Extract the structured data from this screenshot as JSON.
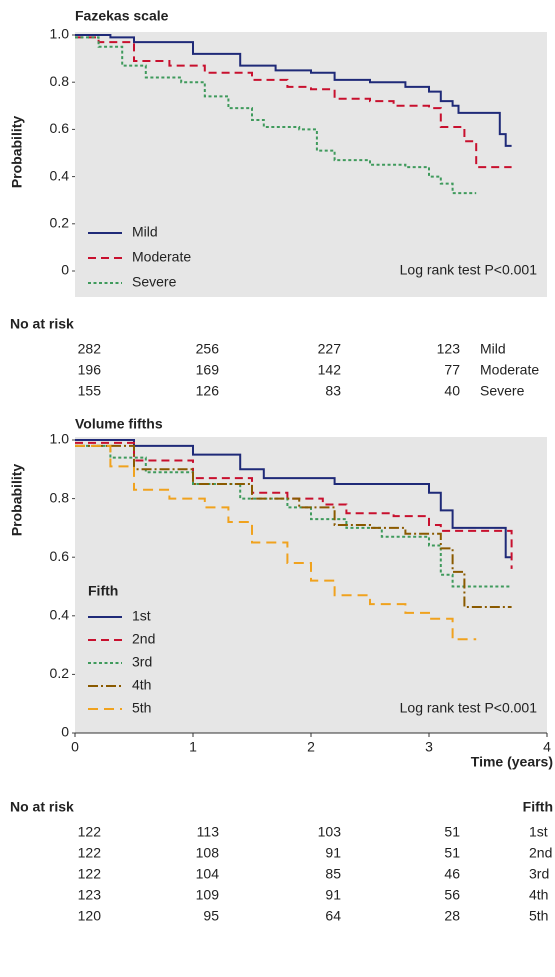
{
  "chart_data": [
    {
      "type": "line",
      "step": true,
      "title": "Fazekas scale",
      "y_label": "Probability",
      "xlim": [
        0,
        4
      ],
      "ylim": [
        0,
        1
      ],
      "yticks": [
        {
          "value": 1,
          "label": "1.0"
        },
        {
          "value": 0.8,
          "label": "0.8"
        },
        {
          "value": 0.6,
          "label": "0.6"
        },
        {
          "value": 0.4,
          "label": "0.4"
        },
        {
          "value": 0.2,
          "label": "0.2"
        },
        0
      ],
      "annotation": "Log rank test P<0.001",
      "series": [
        {
          "name": "Mild",
          "color": "#1f2a78",
          "dash": "solid",
          "x": [
            0,
            0.3,
            0.5,
            1.0,
            1.4,
            1.7,
            2.0,
            2.2,
            2.5,
            2.8,
            3.0,
            3.1,
            3.2,
            3.25,
            3.6,
            3.65,
            3.7
          ],
          "values": [
            1.0,
            0.99,
            0.97,
            0.92,
            0.87,
            0.85,
            0.84,
            0.81,
            0.8,
            0.78,
            0.76,
            0.72,
            0.7,
            0.67,
            0.58,
            0.53,
            0.53
          ]
        },
        {
          "name": "Moderate",
          "color": "#c8102e",
          "dash": "dashed",
          "x": [
            0,
            0.2,
            0.5,
            0.8,
            1.1,
            1.5,
            1.8,
            2.0,
            2.2,
            2.5,
            2.7,
            3.0,
            3.1,
            3.3,
            3.4,
            3.7
          ],
          "values": [
            0.99,
            0.97,
            0.89,
            0.87,
            0.84,
            0.81,
            0.78,
            0.77,
            0.73,
            0.72,
            0.7,
            0.69,
            0.61,
            0.55,
            0.44,
            0.44
          ]
        },
        {
          "name": "Severe",
          "color": "#3f9a5c",
          "dash": "dotted",
          "x": [
            0,
            0.2,
            0.4,
            0.6,
            0.9,
            1.1,
            1.3,
            1.5,
            1.6,
            1.9,
            2.05,
            2.2,
            2.5,
            2.8,
            3.0,
            3.1,
            3.2,
            3.4
          ],
          "values": [
            0.99,
            0.95,
            0.87,
            0.82,
            0.8,
            0.74,
            0.69,
            0.64,
            0.61,
            0.6,
            0.51,
            0.47,
            0.45,
            0.44,
            0.4,
            0.37,
            0.33,
            0.33
          ]
        }
      ],
      "risk_table": {
        "title": "No at risk",
        "rows": [
          {
            "label": "Mild",
            "values": [
              282,
              256,
              227,
              123
            ]
          },
          {
            "label": "Moderate",
            "values": [
              196,
              169,
              142,
              77
            ]
          },
          {
            "label": "Severe",
            "values": [
              155,
              126,
              83,
              40
            ]
          }
        ]
      }
    },
    {
      "type": "line",
      "step": true,
      "title": "Volume fifths",
      "y_label": "Probability",
      "x_label": "Time (years)",
      "xlim": [
        0,
        4
      ],
      "xticks": [
        0,
        1,
        2,
        3,
        4
      ],
      "ylim": [
        0,
        1
      ],
      "yticks": [
        {
          "value": 1,
          "label": "1.0"
        },
        {
          "value": 0.8,
          "label": "0.8"
        },
        {
          "value": 0.6,
          "label": "0.6"
        },
        {
          "value": 0.4,
          "label": "0.4"
        },
        {
          "value": 0.2,
          "label": "0.2"
        },
        0
      ],
      "legend_title": "Fifth",
      "annotation": "Log rank test P<0.001",
      "series": [
        {
          "name": "1st",
          "color": "#1f2a78",
          "dash": "solid",
          "x": [
            0,
            0.5,
            1.0,
            1.4,
            1.6,
            2.2,
            3.0,
            3.1,
            3.2,
            3.65,
            3.7
          ],
          "values": [
            1.0,
            0.98,
            0.95,
            0.9,
            0.87,
            0.85,
            0.82,
            0.76,
            0.7,
            0.6,
            0.6
          ]
        },
        {
          "name": "2nd",
          "color": "#c8102e",
          "dash": "dashed",
          "x": [
            0,
            0.5,
            1.0,
            1.5,
            1.8,
            2.1,
            2.3,
            2.7,
            3.0,
            3.1,
            3.7
          ],
          "values": [
            0.99,
            0.93,
            0.87,
            0.82,
            0.8,
            0.78,
            0.75,
            0.74,
            0.71,
            0.69,
            0.56
          ]
        },
        {
          "name": "3rd",
          "color": "#3f9a5c",
          "dash": "dotted",
          "x": [
            0,
            0.3,
            0.6,
            1.0,
            1.4,
            1.8,
            2.0,
            2.3,
            2.6,
            3.0,
            3.1,
            3.2,
            3.7
          ],
          "values": [
            0.98,
            0.94,
            0.89,
            0.85,
            0.8,
            0.77,
            0.73,
            0.7,
            0.67,
            0.64,
            0.54,
            0.5,
            0.5
          ]
        },
        {
          "name": "4th",
          "color": "#8a5a00",
          "dash": "dashdot",
          "x": [
            0,
            0.5,
            1.0,
            1.5,
            1.9,
            2.2,
            2.5,
            2.8,
            3.1,
            3.2,
            3.3,
            3.7
          ],
          "values": [
            0.98,
            0.9,
            0.85,
            0.8,
            0.77,
            0.71,
            0.7,
            0.68,
            0.63,
            0.55,
            0.43,
            0.43
          ]
        },
        {
          "name": "5th",
          "color": "#f0a21e",
          "dash": "longdash",
          "x": [
            0,
            0.3,
            0.5,
            0.8,
            1.1,
            1.3,
            1.5,
            1.8,
            2.0,
            2.2,
            2.5,
            2.8,
            3.0,
            3.2,
            3.4
          ],
          "values": [
            0.98,
            0.91,
            0.83,
            0.8,
            0.77,
            0.72,
            0.65,
            0.58,
            0.52,
            0.47,
            0.44,
            0.41,
            0.39,
            0.32,
            0.32
          ]
        }
      ],
      "risk_table": {
        "title": "No at risk",
        "label_header": "Fifth",
        "rows": [
          {
            "label": "1st",
            "values": [
              122,
              113,
              103,
              51
            ]
          },
          {
            "label": "2nd",
            "values": [
              122,
              108,
              91,
              51
            ]
          },
          {
            "label": "3rd",
            "values": [
              122,
              104,
              85,
              46
            ]
          },
          {
            "label": "4th",
            "values": [
              123,
              109,
              91,
              56
            ]
          },
          {
            "label": "5th",
            "values": [
              120,
              95,
              64,
              28
            ]
          }
        ]
      }
    }
  ]
}
